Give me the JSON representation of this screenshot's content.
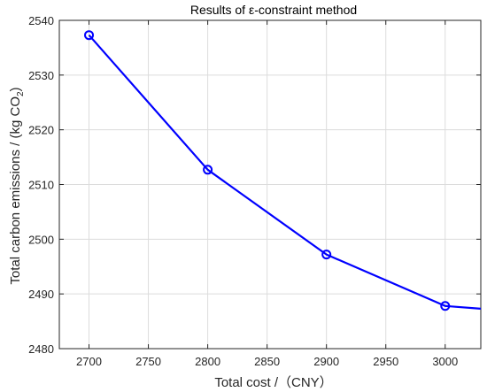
{
  "chart_data": {
    "type": "line",
    "title": "Results of ε-constraint method",
    "xlabel": "Total cost /（CNY）",
    "ylabel_main": "Total carbon emissions / (kg CO",
    "ylabel_sub": "2",
    "ylabel_end": ")",
    "xlim": [
      2675,
      3030
    ],
    "ylim": [
      2480,
      2540
    ],
    "xticks": [
      2700,
      2750,
      2800,
      2850,
      2900,
      2950,
      3000
    ],
    "yticks": [
      2480,
      2490,
      2500,
      2510,
      2520,
      2530,
      2540
    ],
    "grid": true,
    "line_color": "#0000ff",
    "x": [
      2700,
      2800,
      2900,
      3000,
      3030
    ],
    "y": [
      2537.3,
      2512.7,
      2497.2,
      2487.8,
      2487.3
    ],
    "markers": [
      {
        "x": 2700,
        "y": 2537.3
      },
      {
        "x": 2800,
        "y": 2512.7
      },
      {
        "x": 2900,
        "y": 2497.2
      },
      {
        "x": 3000,
        "y": 2487.8
      }
    ]
  }
}
